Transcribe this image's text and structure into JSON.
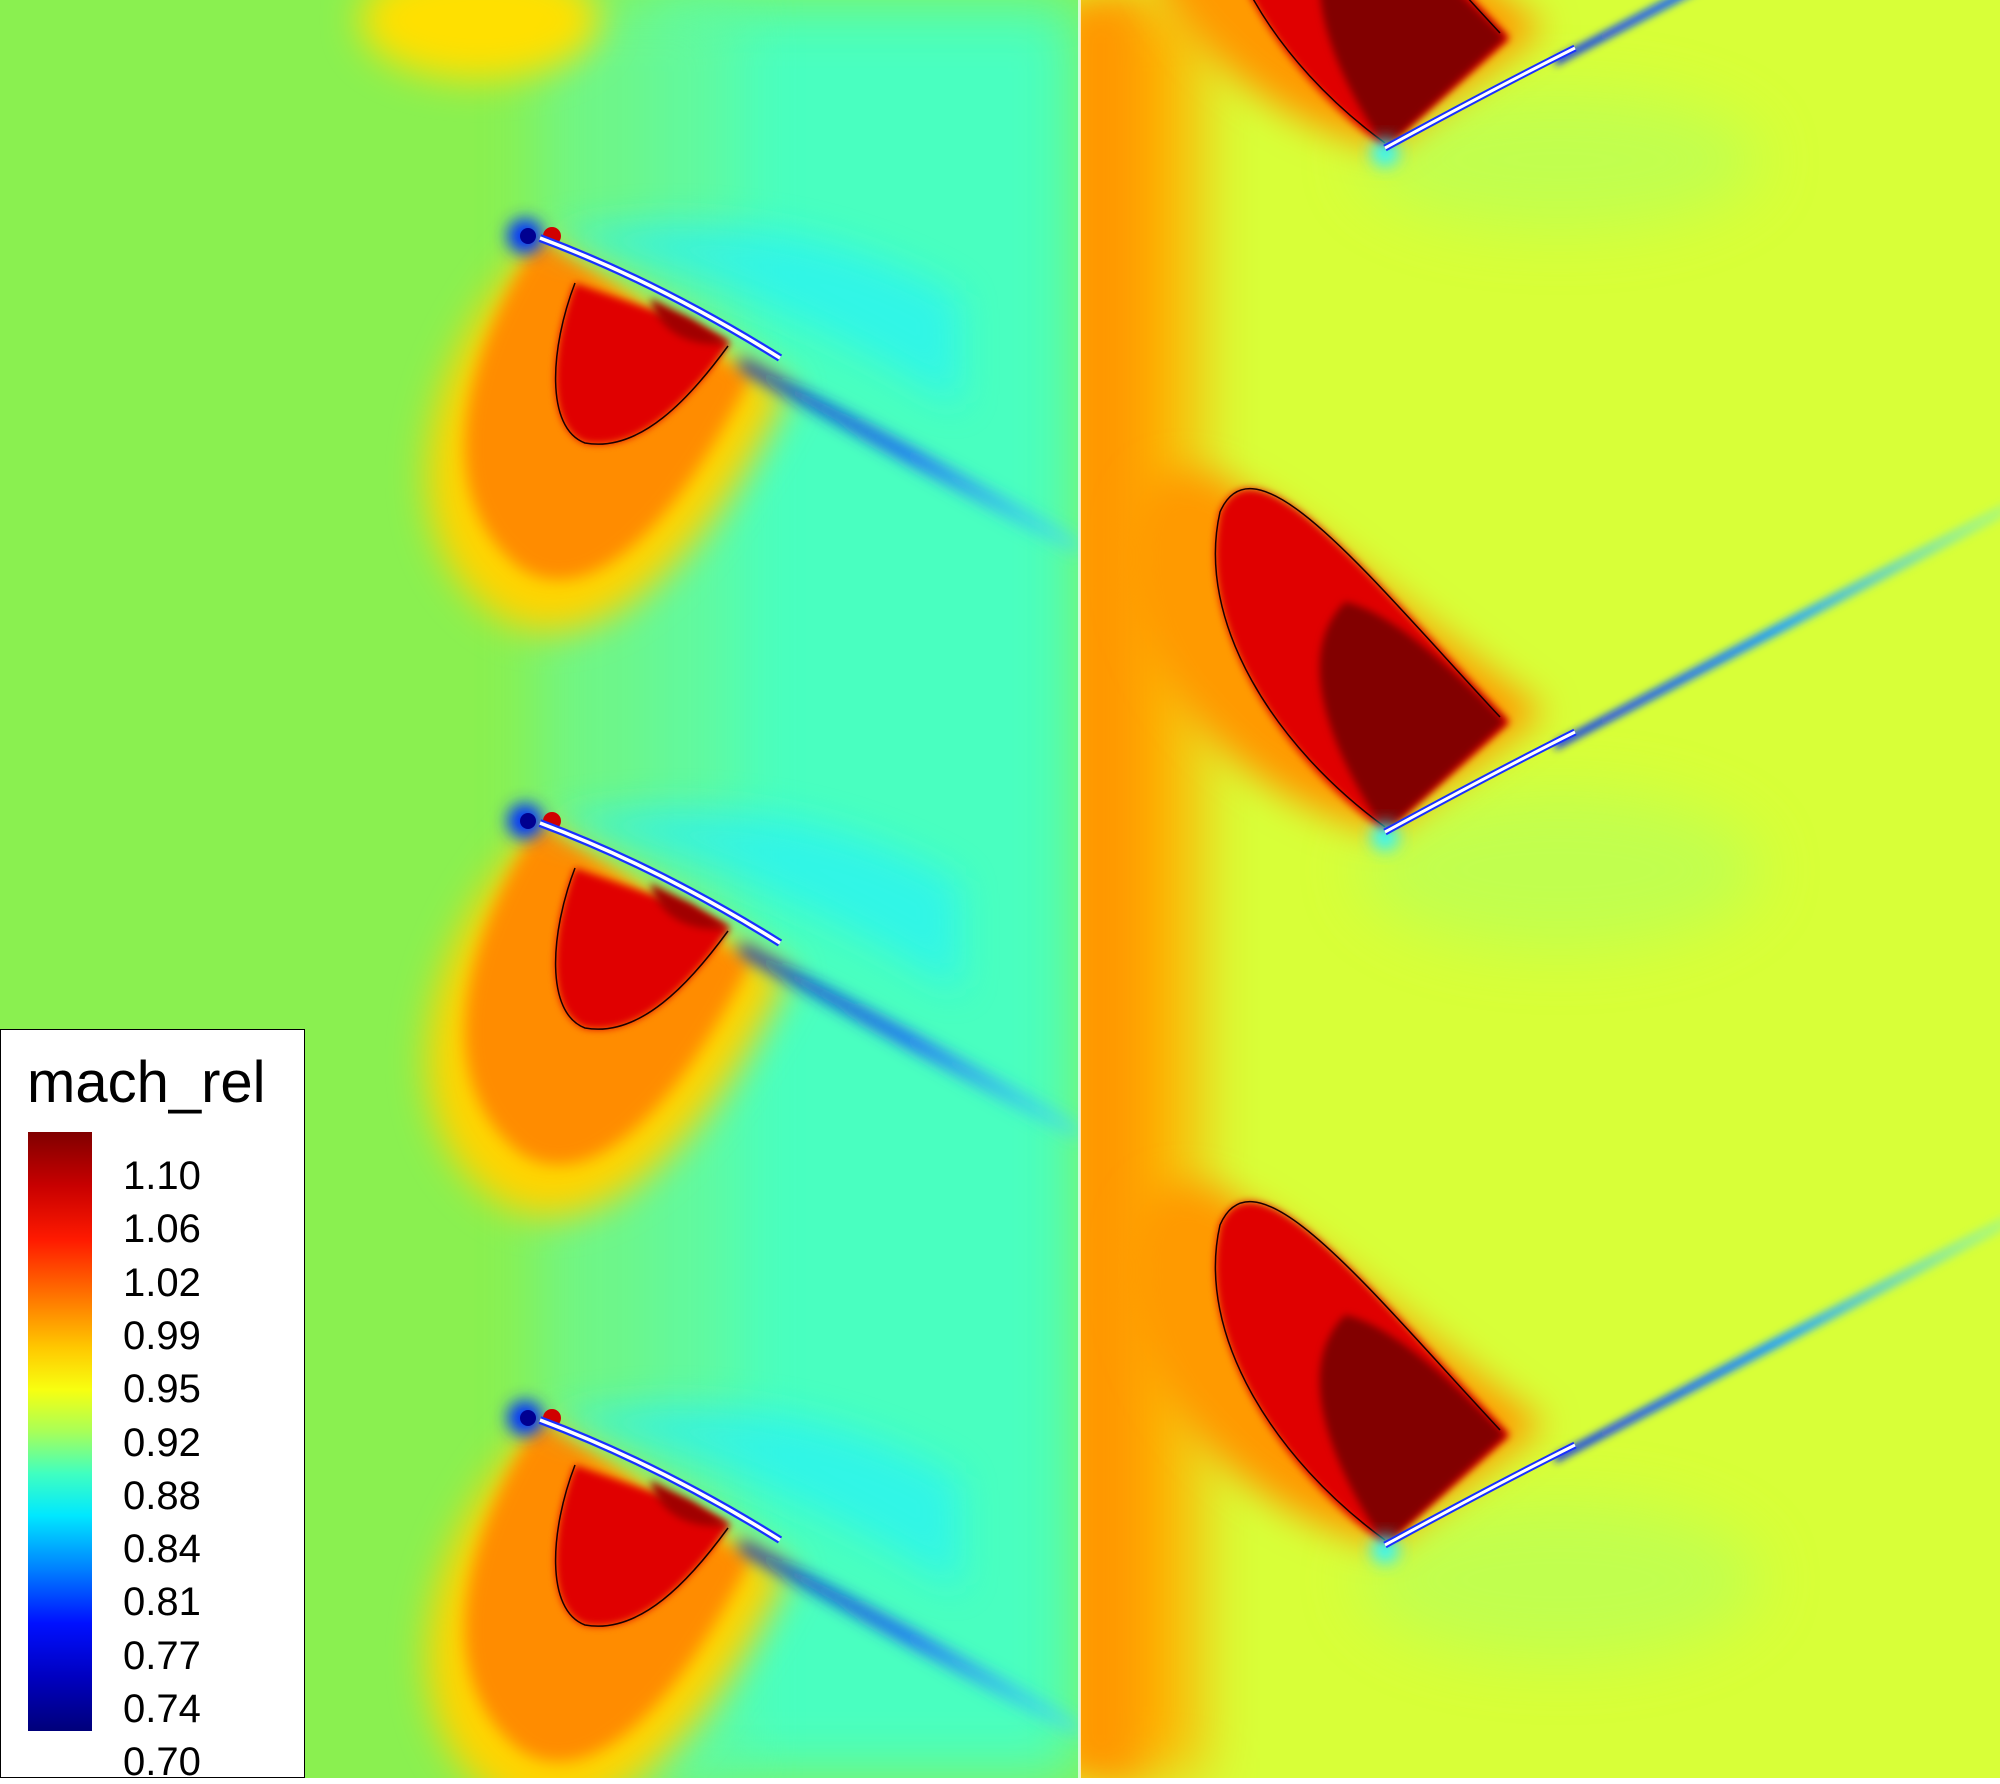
{
  "legend": {
    "title": "mach_rel",
    "labels": [
      "1.10",
      "1.06",
      "1.02",
      "0.99",
      "0.95",
      "0.92",
      "0.88",
      "0.84",
      "0.81",
      "0.77",
      "0.74",
      "0.70"
    ]
  },
  "colors": {
    "background_left": "#8af050",
    "background_right": "#d8ff38",
    "colormap_stops": [
      "#800000",
      "#e80000",
      "#ff6a00",
      "#ffd800",
      "#b6ff4a",
      "#4affb6",
      "#00e8ff",
      "#0060ff",
      "#0000c8",
      "#00007a"
    ]
  }
}
